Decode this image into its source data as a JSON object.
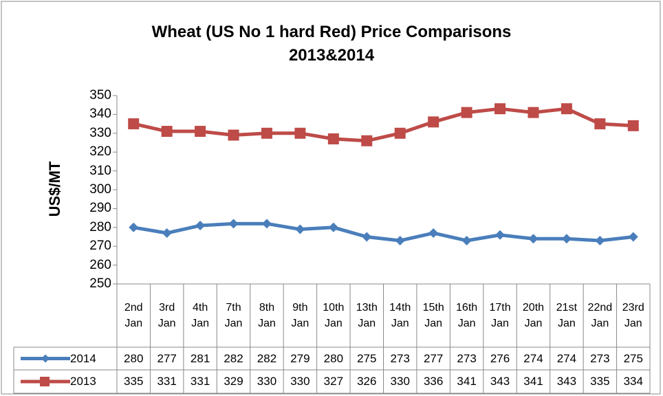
{
  "chart_data": {
    "type": "line",
    "title": "Wheat (US No 1 hard Red) Price Comparisons 2013&2014",
    "y_label": "US$/MT",
    "categories": [
      "2nd Jan",
      "3rd Jan",
      "4th Jan",
      "7th Jan",
      "8th Jan",
      "9th Jan",
      "10th Jan",
      "13th Jan",
      "14th Jan",
      "15th Jan",
      "16th Jan",
      "17th Jan",
      "20th Jan",
      "21st Jan",
      "22nd Jan",
      "23rd Jan"
    ],
    "series": [
      {
        "name": "2014",
        "color": "#4a7ebb",
        "marker": "diamond",
        "values": [
          280,
          277,
          281,
          282,
          282,
          279,
          280,
          275,
          273,
          277,
          273,
          276,
          274,
          274,
          273,
          275
        ]
      },
      {
        "name": "2013",
        "color": "#be4b48",
        "marker": "square",
        "values": [
          335,
          331,
          331,
          329,
          330,
          330,
          327,
          326,
          330,
          336,
          341,
          343,
          341,
          343,
          335,
          334
        ]
      }
    ],
    "ylim": [
      250,
      350
    ],
    "yticks": [
      250,
      260,
      270,
      280,
      290,
      300,
      310,
      320,
      330,
      340,
      350
    ],
    "grid": false
  }
}
